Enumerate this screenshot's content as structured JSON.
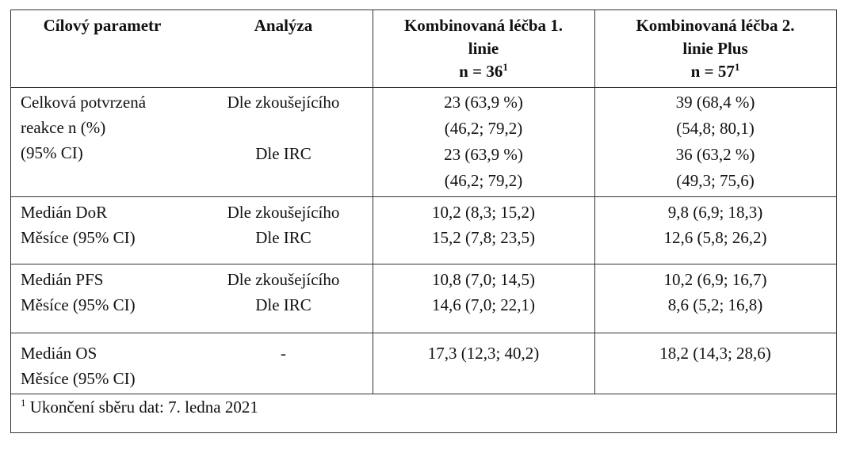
{
  "table": {
    "header": {
      "parameter": "Cílový parametr",
      "analysis": "Analýza",
      "line1": {
        "lines": [
          "Kombinovaná léčba 1.",
          "linie"
        ],
        "n": "n = 36",
        "sup": "1"
      },
      "line2": {
        "lines": [
          "Kombinovaná léčba 2.",
          "linie Plus"
        ],
        "n": "n = 57",
        "sup": "1"
      }
    },
    "rows": [
      {
        "parameter": [
          "Celková potvrzená",
          "reakce n (%)",
          "(95% CI)"
        ],
        "analysis": [
          "Dle zkoušejícího",
          "Dle IRC"
        ],
        "line1": [
          "23 (63,9 %)",
          "(46,2; 79,2)",
          "23 (63,9 %)",
          "(46,2; 79,2)"
        ],
        "line2": [
          "39 (68,4 %)",
          "(54,8; 80,1)",
          "36 (63,2 %)",
          "(49,3; 75,6)"
        ]
      },
      {
        "parameter": [
          "Medián DoR",
          "Měsíce (95% CI)"
        ],
        "analysis": [
          "Dle zkoušejícího",
          "Dle IRC"
        ],
        "line1": [
          "10,2 (8,3; 15,2)",
          "15,2 (7,8; 23,5)"
        ],
        "line2": [
          "9,8 (6,9; 18,3)",
          "12,6 (5,8; 26,2)"
        ]
      },
      {
        "parameter": [
          "Medián PFS",
          "Měsíce (95% CI)"
        ],
        "analysis": [
          "Dle zkoušejícího",
          "Dle IRC"
        ],
        "line1": [
          "10,8 (7,0; 14,5)",
          "14,6 (7,0; 22,1)"
        ],
        "line2": [
          "10,2 (6,9; 16,7)",
          "8,6 (5,2; 16,8)"
        ]
      },
      {
        "parameter": [
          "Medián OS",
          "Měsíce (95% CI)"
        ],
        "analysis": [
          "-"
        ],
        "line1": [
          "17,3 (12,3; 40,2)"
        ],
        "line2": [
          "18,2 (14,3; 28,6)"
        ]
      }
    ],
    "footnote": {
      "sup": "1",
      "text": "Ukončení sběru dat: 7. ledna 2021"
    }
  }
}
